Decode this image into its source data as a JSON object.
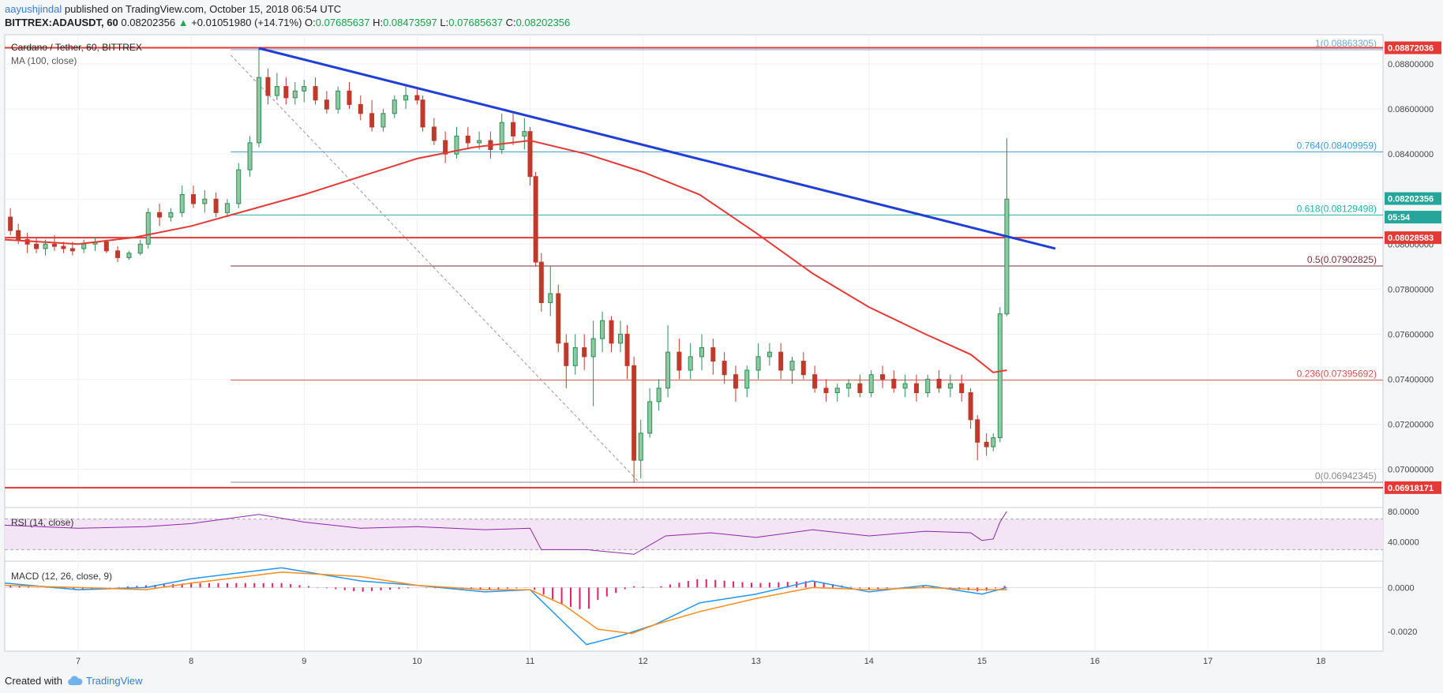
{
  "header": {
    "author": "aayushjindal",
    "published": " published on TradingView.com, October 15, 2018 06:54 UTC",
    "symbol": "BITTREX:ADAUSDT, 60",
    "last": "0.08202356",
    "change": "+0.01051980 (+14.71%)",
    "open": "0.07685637",
    "high": "0.08473597",
    "low": "0.07685637",
    "close": "0.08202356"
  },
  "main_pane": {
    "title": "Cardano / Tether, 60, BITTREX",
    "ma_label": "MA (100, close)"
  },
  "rsi_pane": {
    "label": "RSI (14, close)"
  },
  "macd_pane": {
    "label": "MACD (12, 26, close, 9)"
  },
  "footer": {
    "created_with": "Created with",
    "brand": "TradingView"
  },
  "colors": {
    "up": "#2e8b57",
    "up_fill": "#8fc9a0",
    "down": "#c0392b",
    "ma": "#e53935",
    "trend": "#1f3fd6",
    "price_box": "#e53935",
    "macd_line": "#2196f3",
    "signal_line": "#ff8c1a",
    "hist": "#e91e63",
    "rsi_line": "#8e24aa",
    "rsi_band": "#f3e5f5"
  },
  "chart_data": {
    "type": "candlestick",
    "title": "Cardano / Tether, 60, BITTREX",
    "x_ticks": [
      "7",
      "8",
      "9",
      "10",
      "11",
      "12",
      "13",
      "14",
      "15",
      "16",
      "17",
      "18"
    ],
    "y_ticks": [
      "0.07000000",
      "0.07200000",
      "0.07400000",
      "0.07600000",
      "0.07800000",
      "0.08000000",
      "0.08200000",
      "0.08400000",
      "0.08600000",
      "0.08800000"
    ],
    "ylim": [
      0.0683,
      0.0893
    ],
    "xlim": [
      6.35,
      18.55
    ],
    "candles": [
      [
        6.4,
        0.0812,
        0.0816,
        0.0804,
        0.0806
      ],
      [
        6.47,
        0.0806,
        0.0809,
        0.08,
        0.0802
      ],
      [
        6.55,
        0.0802,
        0.0805,
        0.0796,
        0.08
      ],
      [
        6.63,
        0.08,
        0.0803,
        0.0796,
        0.0798
      ],
      [
        6.71,
        0.0798,
        0.0802,
        0.0795,
        0.08
      ],
      [
        6.79,
        0.08,
        0.0804,
        0.0797,
        0.0799
      ],
      [
        6.87,
        0.0799,
        0.0801,
        0.0796,
        0.0798
      ],
      [
        6.95,
        0.0798,
        0.0801,
        0.0795,
        0.0797
      ],
      [
        7.05,
        0.0798,
        0.0802,
        0.0796,
        0.08
      ],
      [
        7.15,
        0.08,
        0.0803,
        0.0797,
        0.0801
      ],
      [
        7.25,
        0.0801,
        0.0802,
        0.0796,
        0.0797
      ],
      [
        7.35,
        0.0797,
        0.0799,
        0.0792,
        0.0794
      ],
      [
        7.45,
        0.0794,
        0.0797,
        0.0793,
        0.0796
      ],
      [
        7.55,
        0.0796,
        0.0802,
        0.0795,
        0.08
      ],
      [
        7.62,
        0.08,
        0.0816,
        0.0798,
        0.0814
      ],
      [
        7.72,
        0.0814,
        0.0818,
        0.0808,
        0.0812
      ],
      [
        7.82,
        0.0812,
        0.0816,
        0.081,
        0.0814
      ],
      [
        7.92,
        0.0814,
        0.0826,
        0.0812,
        0.0822
      ],
      [
        8.02,
        0.0822,
        0.0826,
        0.0816,
        0.0818
      ],
      [
        8.12,
        0.0818,
        0.0824,
        0.0814,
        0.082
      ],
      [
        8.22,
        0.082,
        0.0823,
        0.0812,
        0.0814
      ],
      [
        8.32,
        0.0814,
        0.082,
        0.0812,
        0.0818
      ],
      [
        8.42,
        0.0818,
        0.0836,
        0.0816,
        0.0833
      ],
      [
        8.52,
        0.0833,
        0.0848,
        0.083,
        0.0845
      ],
      [
        8.6,
        0.0845,
        0.0887,
        0.0843,
        0.0874
      ],
      [
        8.68,
        0.0874,
        0.0878,
        0.0862,
        0.0866
      ],
      [
        8.76,
        0.0866,
        0.0876,
        0.0864,
        0.087
      ],
      [
        8.84,
        0.087,
        0.0874,
        0.0862,
        0.0865
      ],
      [
        8.92,
        0.0865,
        0.0872,
        0.0862,
        0.0868
      ],
      [
        9.0,
        0.0868,
        0.0873,
        0.0863,
        0.087
      ],
      [
        9.1,
        0.087,
        0.0874,
        0.0862,
        0.0864
      ],
      [
        9.2,
        0.0864,
        0.0868,
        0.0858,
        0.086
      ],
      [
        9.3,
        0.086,
        0.087,
        0.0858,
        0.0868
      ],
      [
        9.4,
        0.0868,
        0.0872,
        0.086,
        0.0862
      ],
      [
        9.5,
        0.0862,
        0.0866,
        0.0855,
        0.0858
      ],
      [
        9.6,
        0.0858,
        0.0864,
        0.085,
        0.0852
      ],
      [
        9.7,
        0.0852,
        0.086,
        0.085,
        0.0858
      ],
      [
        9.8,
        0.0858,
        0.0866,
        0.0856,
        0.0864
      ],
      [
        9.9,
        0.0864,
        0.087,
        0.086,
        0.0866
      ],
      [
        10.0,
        0.0866,
        0.087,
        0.0862,
        0.0864
      ],
      [
        10.05,
        0.0864,
        0.0866,
        0.085,
        0.0852
      ],
      [
        10.15,
        0.0852,
        0.0856,
        0.0844,
        0.0846
      ],
      [
        10.25,
        0.0846,
        0.085,
        0.0836,
        0.084
      ],
      [
        10.35,
        0.084,
        0.0852,
        0.0838,
        0.0848
      ],
      [
        10.45,
        0.0848,
        0.0852,
        0.0842,
        0.0845
      ],
      [
        10.55,
        0.0845,
        0.085,
        0.0842,
        0.0846
      ],
      [
        10.65,
        0.0846,
        0.085,
        0.0838,
        0.0842
      ],
      [
        10.75,
        0.0842,
        0.0858,
        0.084,
        0.0854
      ],
      [
        10.85,
        0.0854,
        0.0858,
        0.0844,
        0.0848
      ],
      [
        10.95,
        0.0848,
        0.0856,
        0.0842,
        0.085
      ],
      [
        11.0,
        0.085,
        0.0852,
        0.0826,
        0.083
      ],
      [
        11.05,
        0.083,
        0.0832,
        0.079,
        0.0792
      ],
      [
        11.1,
        0.0792,
        0.0796,
        0.077,
        0.0774
      ],
      [
        11.18,
        0.0774,
        0.079,
        0.0768,
        0.0778
      ],
      [
        11.25,
        0.0778,
        0.0782,
        0.0752,
        0.0756
      ],
      [
        11.32,
        0.0756,
        0.076,
        0.0736,
        0.0746
      ],
      [
        11.4,
        0.0746,
        0.076,
        0.0742,
        0.0754
      ],
      [
        11.48,
        0.0754,
        0.076,
        0.0744,
        0.075
      ],
      [
        11.56,
        0.075,
        0.0766,
        0.0728,
        0.0758
      ],
      [
        11.64,
        0.0758,
        0.077,
        0.0752,
        0.0766
      ],
      [
        11.72,
        0.0766,
        0.0768,
        0.0752,
        0.0756
      ],
      [
        11.8,
        0.0756,
        0.0766,
        0.0752,
        0.076
      ],
      [
        11.86,
        0.076,
        0.0764,
        0.074,
        0.0746
      ],
      [
        11.92,
        0.0746,
        0.075,
        0.0694,
        0.0704
      ],
      [
        11.98,
        0.0704,
        0.0722,
        0.0696,
        0.0716
      ],
      [
        12.06,
        0.0716,
        0.0736,
        0.0714,
        0.073
      ],
      [
        12.14,
        0.073,
        0.074,
        0.0726,
        0.0736
      ],
      [
        12.22,
        0.0736,
        0.0764,
        0.0732,
        0.0752
      ],
      [
        12.32,
        0.0752,
        0.0758,
        0.074,
        0.0744
      ],
      [
        12.42,
        0.0744,
        0.0756,
        0.074,
        0.075
      ],
      [
        12.52,
        0.075,
        0.076,
        0.0744,
        0.0754
      ],
      [
        12.62,
        0.0754,
        0.0758,
        0.0742,
        0.0748
      ],
      [
        12.72,
        0.0748,
        0.0752,
        0.0738,
        0.0742
      ],
      [
        12.82,
        0.0742,
        0.0746,
        0.073,
        0.0736
      ],
      [
        12.92,
        0.0736,
        0.0746,
        0.0732,
        0.0744
      ],
      [
        13.02,
        0.0744,
        0.0756,
        0.074,
        0.075
      ],
      [
        13.12,
        0.075,
        0.0756,
        0.0746,
        0.0752
      ],
      [
        13.22,
        0.0752,
        0.0756,
        0.074,
        0.0744
      ],
      [
        13.32,
        0.0744,
        0.075,
        0.0738,
        0.0748
      ],
      [
        13.42,
        0.0748,
        0.0752,
        0.074,
        0.0742
      ],
      [
        13.52,
        0.0742,
        0.0746,
        0.0734,
        0.0736
      ],
      [
        13.62,
        0.0736,
        0.074,
        0.073,
        0.0734
      ],
      [
        13.72,
        0.0734,
        0.0738,
        0.073,
        0.0736
      ],
      [
        13.82,
        0.0736,
        0.074,
        0.0732,
        0.0738
      ],
      [
        13.92,
        0.0738,
        0.0742,
        0.0732,
        0.0734
      ],
      [
        14.02,
        0.0734,
        0.0744,
        0.0732,
        0.0742
      ],
      [
        14.12,
        0.0742,
        0.0746,
        0.0736,
        0.074
      ],
      [
        14.22,
        0.074,
        0.0744,
        0.0734,
        0.0736
      ],
      [
        14.32,
        0.0736,
        0.0742,
        0.0732,
        0.0738
      ],
      [
        14.42,
        0.0738,
        0.0742,
        0.073,
        0.0734
      ],
      [
        14.52,
        0.0734,
        0.0742,
        0.0732,
        0.074
      ],
      [
        14.62,
        0.074,
        0.0744,
        0.0734,
        0.0736
      ],
      [
        14.72,
        0.0736,
        0.0742,
        0.0732,
        0.0738
      ],
      [
        14.82,
        0.0738,
        0.0742,
        0.073,
        0.0734
      ],
      [
        14.9,
        0.0734,
        0.0736,
        0.0718,
        0.0722
      ],
      [
        14.96,
        0.0722,
        0.0724,
        0.0704,
        0.0712
      ],
      [
        15.04,
        0.0712,
        0.0716,
        0.0706,
        0.071
      ],
      [
        15.1,
        0.071,
        0.0716,
        0.0708,
        0.0714
      ],
      [
        15.16,
        0.0714,
        0.0772,
        0.0712,
        0.0769
      ],
      [
        15.22,
        0.0769,
        0.0847,
        0.0768,
        0.082
      ]
    ],
    "ma100": [
      [
        6.35,
        0.0802
      ],
      [
        7.0,
        0.08
      ],
      [
        7.5,
        0.0803
      ],
      [
        8.0,
        0.0808
      ],
      [
        8.5,
        0.0815
      ],
      [
        9.0,
        0.0822
      ],
      [
        9.5,
        0.083
      ],
      [
        10.0,
        0.0838
      ],
      [
        10.5,
        0.0843
      ],
      [
        11.0,
        0.0846
      ],
      [
        11.5,
        0.084
      ],
      [
        12.0,
        0.0832
      ],
      [
        12.5,
        0.0822
      ],
      [
        13.0,
        0.0805
      ],
      [
        13.5,
        0.0787
      ],
      [
        14.0,
        0.0772
      ],
      [
        14.5,
        0.076
      ],
      [
        14.9,
        0.0751
      ],
      [
        15.1,
        0.0743
      ],
      [
        15.22,
        0.0744
      ]
    ],
    "trendline": [
      [
        8.6,
        0.0887
      ],
      [
        15.65,
        0.0798
      ]
    ],
    "fib_diagonal": [
      [
        8.35,
        0.0884
      ],
      [
        11.97,
        0.0694
      ]
    ],
    "fib_levels": [
      {
        "label": "1(0.08863305)",
        "value": 0.08863305,
        "color": "#6fa8dc"
      },
      {
        "label": "0.764(0.08409959)",
        "value": 0.08409959,
        "color": "#3b9bd8"
      },
      {
        "label": "0.618(0.08129498)",
        "value": 0.08129498,
        "color": "#20b2aa"
      },
      {
        "label": "0.5(0.07902825)",
        "value": 0.07902825,
        "color": "#7b2d3b"
      },
      {
        "label": "0.236(0.07395692)",
        "value": 0.07395692,
        "color": "#d9534f"
      },
      {
        "label": "0(0.06942345)",
        "value": 0.06942345,
        "color": "#888888"
      }
    ],
    "horizontal_lines": [
      0.08872036,
      0.08028583,
      0.06918171
    ],
    "price_tags": [
      {
        "label": "0.08872036",
        "value": 0.08872036,
        "color": "#e53935"
      },
      {
        "label": "0.08202356",
        "value": 0.08202356,
        "color": "#26a69a"
      },
      {
        "label": "05:54",
        "value": 0.0812,
        "color": "#26a69a"
      },
      {
        "label": "0.08028583",
        "value": 0.08028583,
        "color": "#e53935"
      },
      {
        "label": "0.06918171",
        "value": 0.06918171,
        "color": "#e53935"
      }
    ],
    "rsi": {
      "y_ticks": [
        "40.0000",
        "80.0000"
      ],
      "ylim": [
        15,
        85
      ],
      "band": [
        30,
        70
      ],
      "values": [
        [
          6.35,
          62
        ],
        [
          7.0,
          58
        ],
        [
          7.6,
          60
        ],
        [
          8.0,
          64
        ],
        [
          8.6,
          76
        ],
        [
          9.0,
          66
        ],
        [
          9.5,
          58
        ],
        [
          10.0,
          60
        ],
        [
          10.6,
          56
        ],
        [
          11.0,
          58
        ],
        [
          11.1,
          30
        ],
        [
          11.5,
          30
        ],
        [
          11.92,
          24
        ],
        [
          12.2,
          48
        ],
        [
          12.6,
          52
        ],
        [
          13.0,
          46
        ],
        [
          13.5,
          56
        ],
        [
          14.0,
          48
        ],
        [
          14.5,
          54
        ],
        [
          14.9,
          52
        ],
        [
          15.0,
          42
        ],
        [
          15.1,
          44
        ],
        [
          15.16,
          66
        ],
        [
          15.22,
          80
        ]
      ]
    },
    "macd": {
      "y_ticks": [
        "0.0000",
        "-0.0020"
      ],
      "ylim": [
        -0.0029,
        0.0012
      ],
      "macd_line": [
        [
          6.35,
          0.0002
        ],
        [
          7.0,
          -0.0001
        ],
        [
          7.6,
          0.0
        ],
        [
          8.0,
          0.0004
        ],
        [
          8.8,
          0.0009
        ],
        [
          9.5,
          0.0003
        ],
        [
          10.0,
          0.0001
        ],
        [
          10.6,
          -0.0002
        ],
        [
          11.0,
          -0.0001
        ],
        [
          11.3,
          -0.0016
        ],
        [
          11.5,
          -0.0026
        ],
        [
          11.8,
          -0.0022
        ],
        [
          12.1,
          -0.0017
        ],
        [
          12.5,
          -0.0007
        ],
        [
          13.0,
          -0.0003
        ],
        [
          13.5,
          0.0003
        ],
        [
          14.0,
          -0.0002
        ],
        [
          14.5,
          0.0001
        ],
        [
          15.0,
          -0.0003
        ],
        [
          15.22,
          0.0
        ]
      ],
      "signal_line": [
        [
          6.35,
          0.0001
        ],
        [
          7.0,
          0.0
        ],
        [
          7.6,
          -0.0001
        ],
        [
          8.0,
          0.0002
        ],
        [
          8.8,
          0.0007
        ],
        [
          9.5,
          0.0005
        ],
        [
          10.0,
          0.0001
        ],
        [
          10.6,
          -0.0001
        ],
        [
          11.0,
          -0.0001
        ],
        [
          11.3,
          -0.0008
        ],
        [
          11.6,
          -0.0019
        ],
        [
          11.9,
          -0.0021
        ],
        [
          12.1,
          -0.0017
        ],
        [
          12.5,
          -0.0011
        ],
        [
          13.0,
          -0.0005
        ],
        [
          13.5,
          0.0
        ],
        [
          14.0,
          -0.0001
        ],
        [
          14.5,
          0.0
        ],
        [
          15.0,
          -0.0001
        ],
        [
          15.22,
          -0.0001
        ]
      ]
    }
  }
}
